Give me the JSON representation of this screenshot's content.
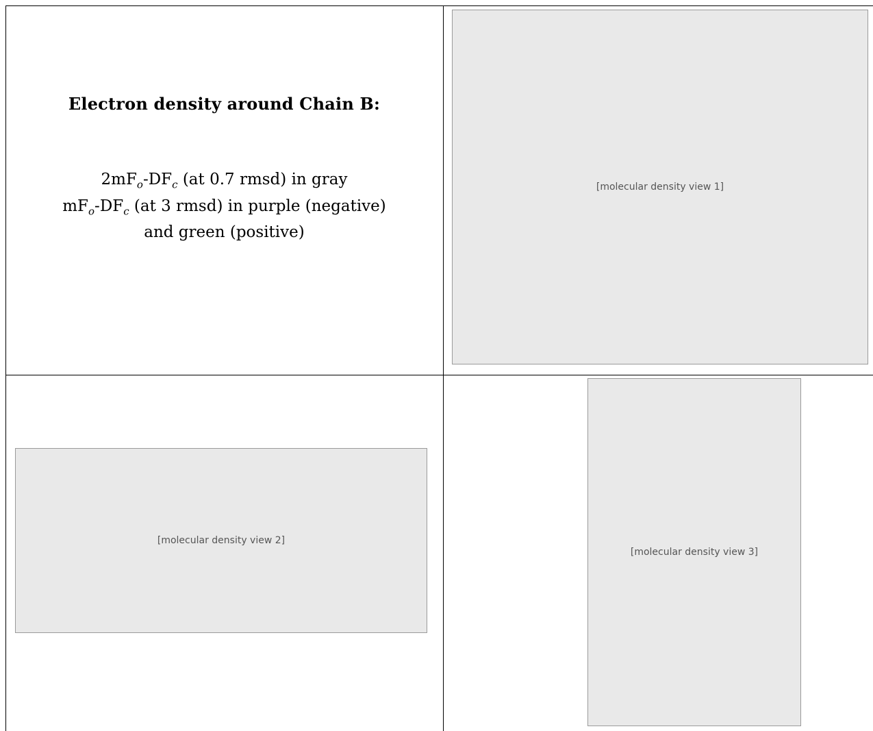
{
  "caption": {
    "title": "Electron density around Chain B:",
    "line1_prefix": "2mF",
    "line1_sub1": "o",
    "line1_mid": "-DF",
    "line1_sub2": "c",
    "line1_suffix": " (at 0.7 rmsd) in gray",
    "line2_prefix": "mF",
    "line2_sub1": "o",
    "line2_mid": "-DF",
    "line2_sub2": "c",
    "line2_suffix": " (at 3 rmsd) in purple (negative)",
    "line3": "and green (positive)"
  },
  "panels": {
    "top_right": "[molecular density view 1]",
    "bottom_left": "[molecular density view 2]",
    "bottom_right": "[molecular density view 3]"
  }
}
